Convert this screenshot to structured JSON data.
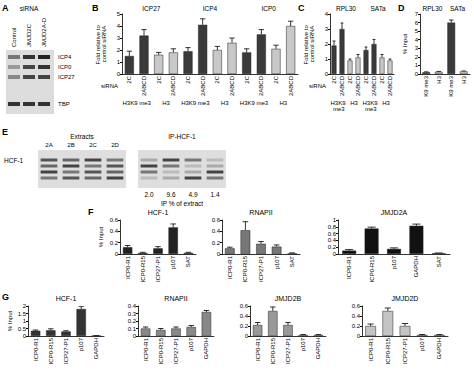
{
  "chart_data": [
    {
      "type": "blot",
      "panel": "A",
      "header": "siRNA",
      "lanes": [
        "Control",
        "JMJD2C",
        "JMJD2A-D"
      ],
      "rows": [
        "ICP4",
        "ICP0",
        "ICP27",
        "TBP"
      ]
    },
    {
      "type": "bar",
      "panel": "B",
      "ylabel": "Fold relative to control siRNA",
      "row_label": "siRNA",
      "group_labels": [
        "ICP27",
        "ICP4",
        "ICP0"
      ],
      "antibodies": [
        "H3K9 me3",
        "H3",
        "H3K9 me3",
        "H3",
        "H3K9 me3",
        "H3"
      ],
      "categories": [
        "2C",
        "2ABCD",
        "2C",
        "2ABCD",
        "2C",
        "2ABCD",
        "2C",
        "2ABCD",
        "2C",
        "2ABCD",
        "2C",
        "2ABCD"
      ],
      "values": [
        1.5,
        3.2,
        1.6,
        1.8,
        1.9,
        4.1,
        2.0,
        2.6,
        1.8,
        3.3,
        2.1,
        4.0
      ],
      "errors": [
        0.4,
        0.5,
        0.2,
        0.3,
        0.3,
        0.5,
        0.3,
        0.4,
        0.3,
        0.4,
        0.3,
        0.4
      ],
      "colors": [
        "#3a3a3a",
        "#3a3a3a",
        "#c8c8c8",
        "#c8c8c8",
        "#3a3a3a",
        "#3a3a3a",
        "#c8c8c8",
        "#c8c8c8",
        "#3a3a3a",
        "#3a3a3a",
        "#c8c8c8",
        "#c8c8c8"
      ],
      "ylim": [
        0,
        5
      ],
      "yticks": [
        0,
        1,
        2,
        3,
        4,
        5
      ]
    },
    {
      "type": "bar",
      "panel": "C",
      "ylabel": "Fold relative to control siRNA",
      "row_label": "siRNA",
      "group_labels": [
        "RPL30",
        "SATa"
      ],
      "antibodies": [
        "H3K9 me3",
        "H3",
        "H3K9 me3",
        "H3"
      ],
      "categories": [
        "2C",
        "2ABCD",
        "2C",
        "2ABCD",
        "2C",
        "2ABCD",
        "2C",
        "2ABCD"
      ],
      "values": [
        1.9,
        3.0,
        0.9,
        1.1,
        1.6,
        2.0,
        1.1,
        0.9
      ],
      "errors": [
        0.3,
        0.4,
        0.1,
        0.2,
        0.2,
        0.3,
        0.2,
        0.1
      ],
      "colors": [
        "#3a3a3a",
        "#3a3a3a",
        "#c8c8c8",
        "#c8c8c8",
        "#3a3a3a",
        "#3a3a3a",
        "#c8c8c8",
        "#c8c8c8"
      ],
      "ylim": [
        0,
        4
      ],
      "yticks": [
        0,
        1,
        2,
        3,
        4
      ]
    },
    {
      "type": "bar",
      "panel": "D",
      "ylabel": "% Input",
      "group_labels": [
        "RPL30",
        "SATa"
      ],
      "categories": [
        "K9 me3",
        "H3",
        "K9 me3",
        "H3"
      ],
      "values": [
        0.2,
        0.25,
        6.0,
        0.3
      ],
      "errors": [
        0.05,
        0.05,
        0.3,
        0.05
      ],
      "colors": [
        "#3a3a3a",
        "#c8c8c8",
        "#3a3a3a",
        "#c8c8c8"
      ],
      "ylim": [
        0,
        7
      ],
      "yticks": [
        0,
        1,
        2,
        3,
        4,
        5,
        6,
        7
      ]
    },
    {
      "type": "gel",
      "panel": "E",
      "row_label": "HCF-1",
      "sections": [
        {
          "label": "Extracts",
          "lanes": [
            "2A",
            "2B",
            "2C",
            "2D"
          ]
        },
        {
          "label": "IP-HCF-1",
          "values": [
            "2.0",
            "9.6",
            "4.9",
            "1.4"
          ],
          "values_label": "IP % of extract"
        }
      ]
    },
    {
      "type": "bar",
      "panel": "F",
      "title": "HCF-1",
      "ylabel": "% Input",
      "categories": [
        "ICP0-R1",
        "ICP0-R15",
        "ICP27-P1",
        "p107",
        "SAT"
      ],
      "values": [
        0.12,
        0.02,
        0.1,
        0.47,
        0.02
      ],
      "errors": [
        0.03,
        0.01,
        0.03,
        0.06,
        0.01
      ],
      "color": "#222222",
      "ylim": [
        0,
        0.6
      ],
      "yticks": [
        0,
        0.2,
        0.4,
        0.6
      ]
    },
    {
      "type": "bar",
      "title": "RNAPII",
      "categories": [
        "ICP0-R1",
        "ICP0-R15",
        "ICP27-P1",
        "p107",
        "SAT"
      ],
      "values": [
        0.1,
        0.42,
        0.18,
        0.13,
        0.01
      ],
      "errors": [
        0.02,
        0.15,
        0.04,
        0.03,
        0.01
      ],
      "color": "#777777",
      "ylim": [
        0,
        0.6
      ],
      "yticks": [
        0,
        0.2,
        0.4,
        0.6
      ]
    },
    {
      "type": "bar",
      "title": "JMJD2A",
      "categories": [
        "ICP0-R1",
        "ICP0-R15",
        "p107",
        "GAPDH",
        "SAT"
      ],
      "values": [
        0.1,
        0.75,
        0.15,
        0.83,
        0.02
      ],
      "errors": [
        0.03,
        0.04,
        0.03,
        0.05,
        0.01
      ],
      "color": "#111111",
      "ylim": [
        0,
        1
      ],
      "yticks": [
        0,
        0.2,
        0.4,
        0.6,
        0.8,
        1
      ]
    },
    {
      "type": "bar",
      "panel": "G",
      "title": "HCF-1",
      "ylabel": "% Input",
      "categories": [
        "ICP0-R1",
        "ICP0-R15",
        "ICP27-P1",
        "p107",
        "GAPDH"
      ],
      "values": [
        0.35,
        0.38,
        0.3,
        1.8,
        0.02
      ],
      "errors": [
        0.05,
        0.1,
        0.05,
        0.18,
        0.01
      ],
      "color": "#333333",
      "ylim": [
        0,
        2
      ],
      "yticks": [
        0,
        0.5,
        1,
        1.5,
        2
      ]
    },
    {
      "type": "bar",
      "title": "RNAPII",
      "categories": [
        "ICP0-R1",
        "ICP0-R15",
        "ICP27-P1",
        "p107",
        "GAPDH"
      ],
      "values": [
        0.1,
        0.08,
        0.1,
        0.12,
        0.32
      ],
      "errors": [
        0.02,
        0.02,
        0.02,
        0.02,
        0.02
      ],
      "color": "#888888",
      "ylim": [
        0,
        0.4
      ],
      "yticks": [
        0,
        0.1,
        0.2,
        0.3,
        0.4
      ]
    },
    {
      "type": "bar",
      "title": "JMJD2B",
      "categories": [
        "ICP0-R1",
        "ICP0-R15",
        "ICP27-P1",
        "p107",
        "GAPDH"
      ],
      "values": [
        0.22,
        0.5,
        0.22,
        0.02,
        0.02
      ],
      "errors": [
        0.05,
        0.08,
        0.05,
        0.01,
        0.01
      ],
      "color": "#999999",
      "ylim": [
        0,
        0.6
      ],
      "yticks": [
        0,
        0.2,
        0.4,
        0.6
      ]
    },
    {
      "type": "bar",
      "title": "JMJD2D",
      "categories": [
        "ICP0-R1",
        "ICP0-R15",
        "ICP27-P1",
        "p107",
        "GAPDH"
      ],
      "values": [
        0.2,
        0.5,
        0.2,
        0.02,
        0.02
      ],
      "errors": [
        0.04,
        0.06,
        0.05,
        0.01,
        0.01
      ],
      "color": "#c4c4c4",
      "ylim": [
        0,
        0.6
      ],
      "yticks": [
        0,
        0.2,
        0.4,
        0.6
      ]
    }
  ]
}
